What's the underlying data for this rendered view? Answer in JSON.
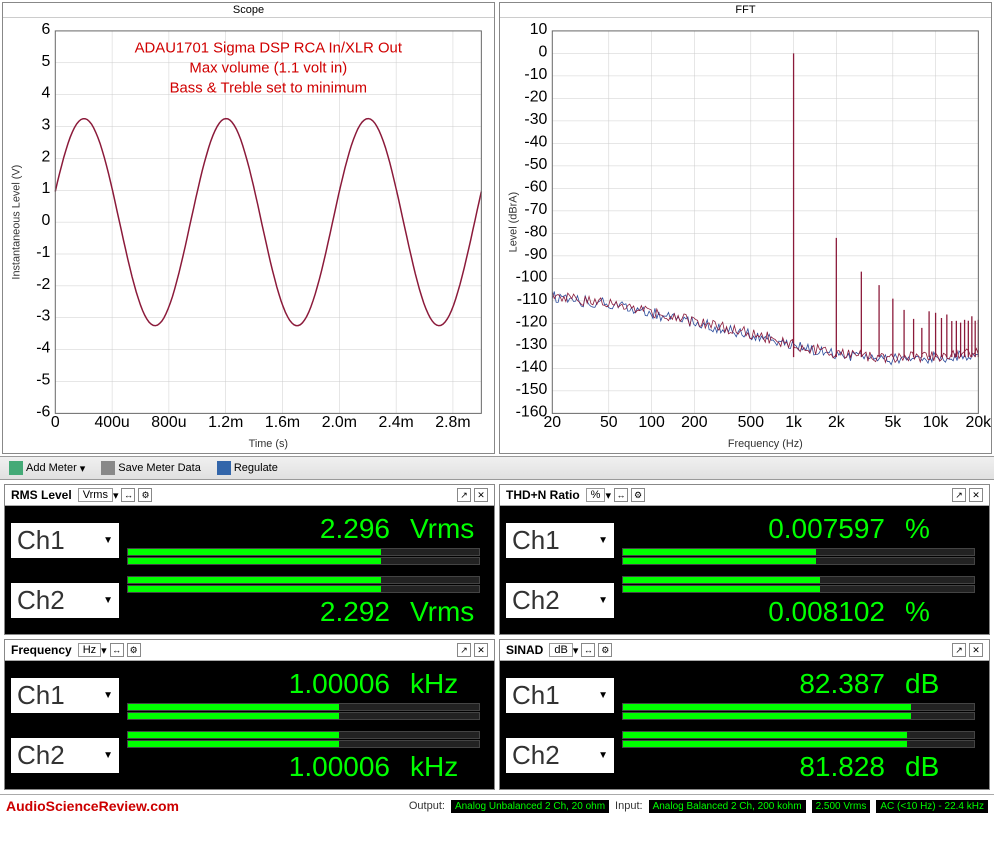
{
  "scope": {
    "title": "Scope",
    "xlabel": "Time (s)",
    "ylabel": "Instantaneous Level (V)",
    "xlim": [
      0,
      0.003
    ],
    "ylim": [
      -6,
      6
    ],
    "xticks": [
      "0",
      "400u",
      "800u",
      "1.2m",
      "1.6m",
      "2.0m",
      "2.4m",
      "2.8m"
    ],
    "yticks": [
      -6,
      -5,
      -4,
      -3,
      -2,
      -1,
      0,
      1,
      2,
      3,
      4,
      5,
      6
    ],
    "amplitude": 3.25,
    "freq_hz": 1000,
    "trace_color": "#8b1a3a",
    "grid_color": "#cccccc",
    "annotations": [
      "ADAU1701 Sigma DSP RCA In/XLR Out",
      "Max volume (1.1 volt in)",
      "Bass & Treble set to minimum"
    ],
    "annotation_color": "#d00000"
  },
  "fft": {
    "title": "FFT",
    "xlabel": "Frequency (Hz)",
    "ylabel": "Level (dBrA)",
    "xlim": [
      20,
      20000
    ],
    "ylim": [
      -160,
      10
    ],
    "xticks": [
      "20",
      "50",
      "100",
      "200",
      "500",
      "1k",
      "2k",
      "5k",
      "10k",
      "20k"
    ],
    "yticks": [
      -160,
      -150,
      -140,
      -130,
      -120,
      -110,
      -100,
      -90,
      -80,
      -70,
      -60,
      -50,
      -40,
      -30,
      -20,
      -10,
      0,
      10
    ],
    "fundamental_hz": 1000,
    "fundamental_db": 0,
    "harmonics": [
      [
        2000,
        -82
      ],
      [
        3000,
        -97
      ],
      [
        4000,
        -103
      ],
      [
        5000,
        -109
      ],
      [
        6000,
        -114
      ],
      [
        7000,
        -118
      ],
      [
        8000,
        -122
      ]
    ],
    "noise_curve": [
      [
        20,
        -108
      ],
      [
        30,
        -110
      ],
      [
        50,
        -111
      ],
      [
        80,
        -114
      ],
      [
        150,
        -118
      ],
      [
        300,
        -122
      ],
      [
        600,
        -126
      ],
      [
        1000,
        -130
      ],
      [
        2000,
        -134
      ],
      [
        5000,
        -136
      ],
      [
        10000,
        -135
      ],
      [
        20000,
        -134
      ]
    ],
    "trace1_color": "#8b1a3a",
    "trace2_color": "#2a4a9b",
    "grid_color": "#cccccc"
  },
  "toolbar": {
    "add_meter": "Add Meter",
    "save_meter": "Save Meter Data",
    "regulate": "Regulate"
  },
  "meters": {
    "rms": {
      "title": "RMS Level",
      "unit": "Vrms",
      "ch1": {
        "label": "Ch1",
        "value": "2.296",
        "unit": "Vrms",
        "bar_pct": 72
      },
      "ch2": {
        "label": "Ch2",
        "value": "2.292",
        "unit": "Vrms",
        "bar_pct": 72
      }
    },
    "thdn": {
      "title": "THD+N Ratio",
      "unit": "%",
      "ch1": {
        "label": "Ch1",
        "value": "0.007597",
        "unit": "%",
        "bar_pct": 55
      },
      "ch2": {
        "label": "Ch2",
        "value": "0.008102",
        "unit": "%",
        "bar_pct": 56
      }
    },
    "freq": {
      "title": "Frequency",
      "unit": "Hz",
      "ch1": {
        "label": "Ch1",
        "value": "1.00006",
        "unit": "kHz",
        "bar_pct": 60
      },
      "ch2": {
        "label": "Ch2",
        "value": "1.00006",
        "unit": "kHz",
        "bar_pct": 60
      }
    },
    "sinad": {
      "title": "SINAD",
      "unit": "dB",
      "ch1": {
        "label": "Ch1",
        "value": "82.387",
        "unit": "dB",
        "bar_pct": 82
      },
      "ch2": {
        "label": "Ch2",
        "value": "81.828",
        "unit": "dB",
        "bar_pct": 81
      }
    }
  },
  "status": {
    "brand": "AudioScienceReview.com",
    "output_label": "Output:",
    "output_value": "Analog Unbalanced 2 Ch, 20 ohm",
    "input_label": "Input:",
    "input_value": "Analog Balanced 2 Ch, 200 kohm",
    "level": "2.500 Vrms",
    "filter": "AC (<10 Hz) - 22.4 kHz"
  }
}
